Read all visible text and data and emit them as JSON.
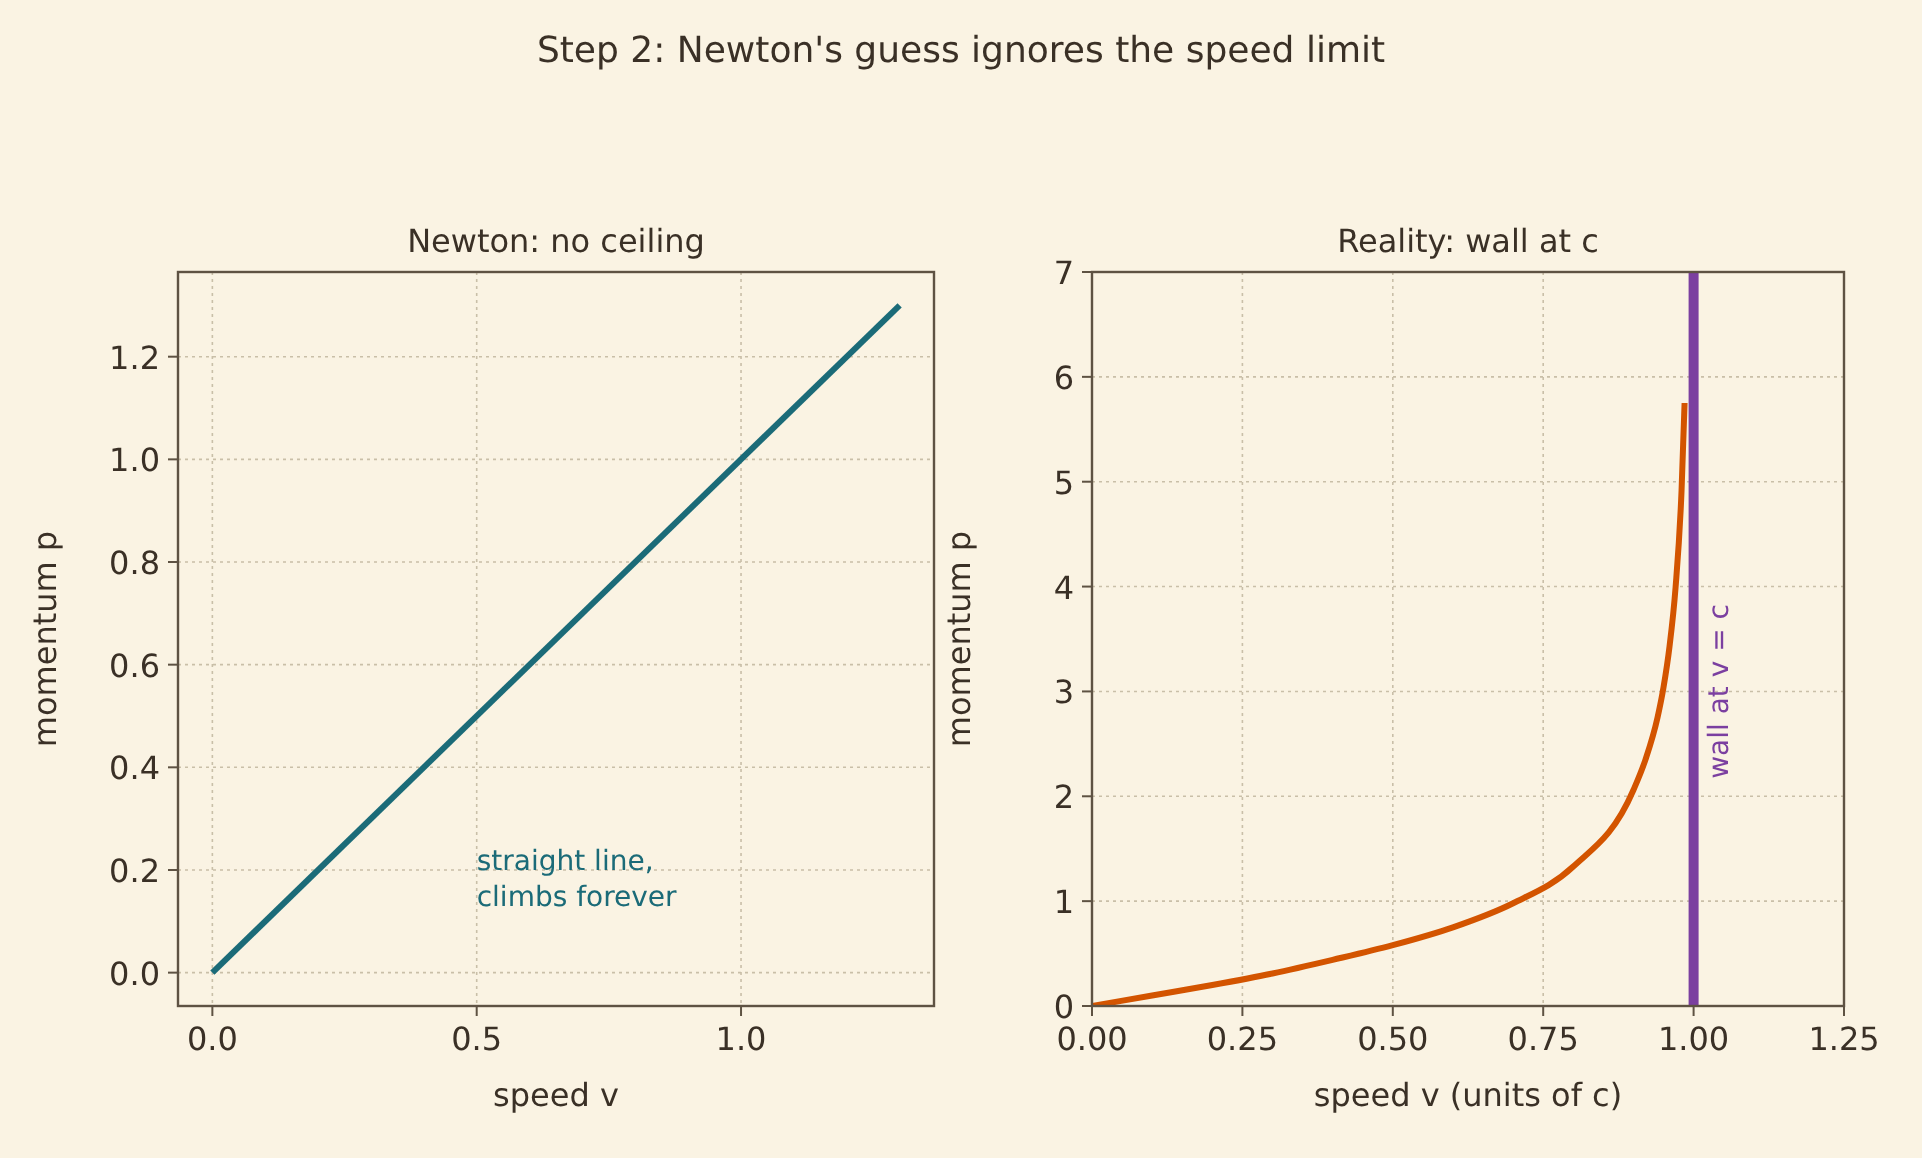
{
  "chart_data": [
    {
      "type": "line",
      "title": "Newton: no ceiling",
      "xlabel": "speed v",
      "ylabel": "momentum p",
      "annotations": [
        "Step 2: Newton's guess ignores the speed limit",
        "straight line,\nclimbs forever"
      ],
      "series": [
        {
          "x": [
            0,
            1.3
          ],
          "values": [
            0,
            1.3
          ],
          "color": "#1b6b78"
        }
      ],
      "xlim": [
        -0.065,
        1.365
      ],
      "ylim": [
        -0.065,
        1.365
      ],
      "xticks": [
        {
          "value": 0,
          "label": "0.0"
        },
        {
          "value": 0.5,
          "label": "0.5"
        },
        {
          "value": 1,
          "label": "1.0"
        }
      ],
      "yticks": [
        {
          "value": 0,
          "label": "0.0"
        },
        {
          "value": 0.2,
          "label": "0.2"
        },
        {
          "value": 0.4,
          "label": "0.4"
        },
        {
          "value": 0.6,
          "label": "0.6"
        },
        {
          "value": 0.8,
          "label": "0.8"
        },
        {
          "value": 1,
          "label": "1.0"
        },
        {
          "value": 1.2,
          "label": "1.2"
        }
      ],
      "grid": true,
      "line_style": "solid"
    },
    {
      "type": "line",
      "title": "Reality: wall at c",
      "xlabel": "speed v (units of c)",
      "ylabel": "momentum p",
      "series": [
        {
          "x": [
            0,
            0.1,
            0.2,
            0.3,
            0.4,
            0.5,
            0.6,
            0.7,
            0.8,
            0.9,
            0.92,
            0.94,
            0.95,
            0.96,
            0.97,
            0.98,
            0.985
          ],
          "values": [
            0,
            0.1,
            0.2,
            0.31,
            0.44,
            0.58,
            0.75,
            0.98,
            1.33,
            2.06,
            2.35,
            2.75,
            3.04,
            3.43,
            3.99,
            4.92,
            5.75
          ],
          "color": "#d35400"
        }
      ],
      "xlim": [
        0,
        1.25
      ],
      "ylim": [
        0,
        7
      ],
      "xticks": [
        {
          "value": 0,
          "label": "0.00"
        },
        {
          "value": 0.25,
          "label": "0.25"
        },
        {
          "value": 0.5,
          "label": "0.50"
        },
        {
          "value": 0.75,
          "label": "0.75"
        },
        {
          "value": 1,
          "label": "1.00"
        },
        {
          "value": 1.25,
          "label": "1.25"
        }
      ],
      "yticks": [
        0,
        1,
        2,
        3,
        4,
        5,
        6,
        7
      ],
      "ref_lines": [
        {
          "axis": "x",
          "value": 1,
          "label": "wall at v = c",
          "color": "#7b3fa0"
        }
      ],
      "grid": true,
      "line_style": "solid"
    }
  ]
}
